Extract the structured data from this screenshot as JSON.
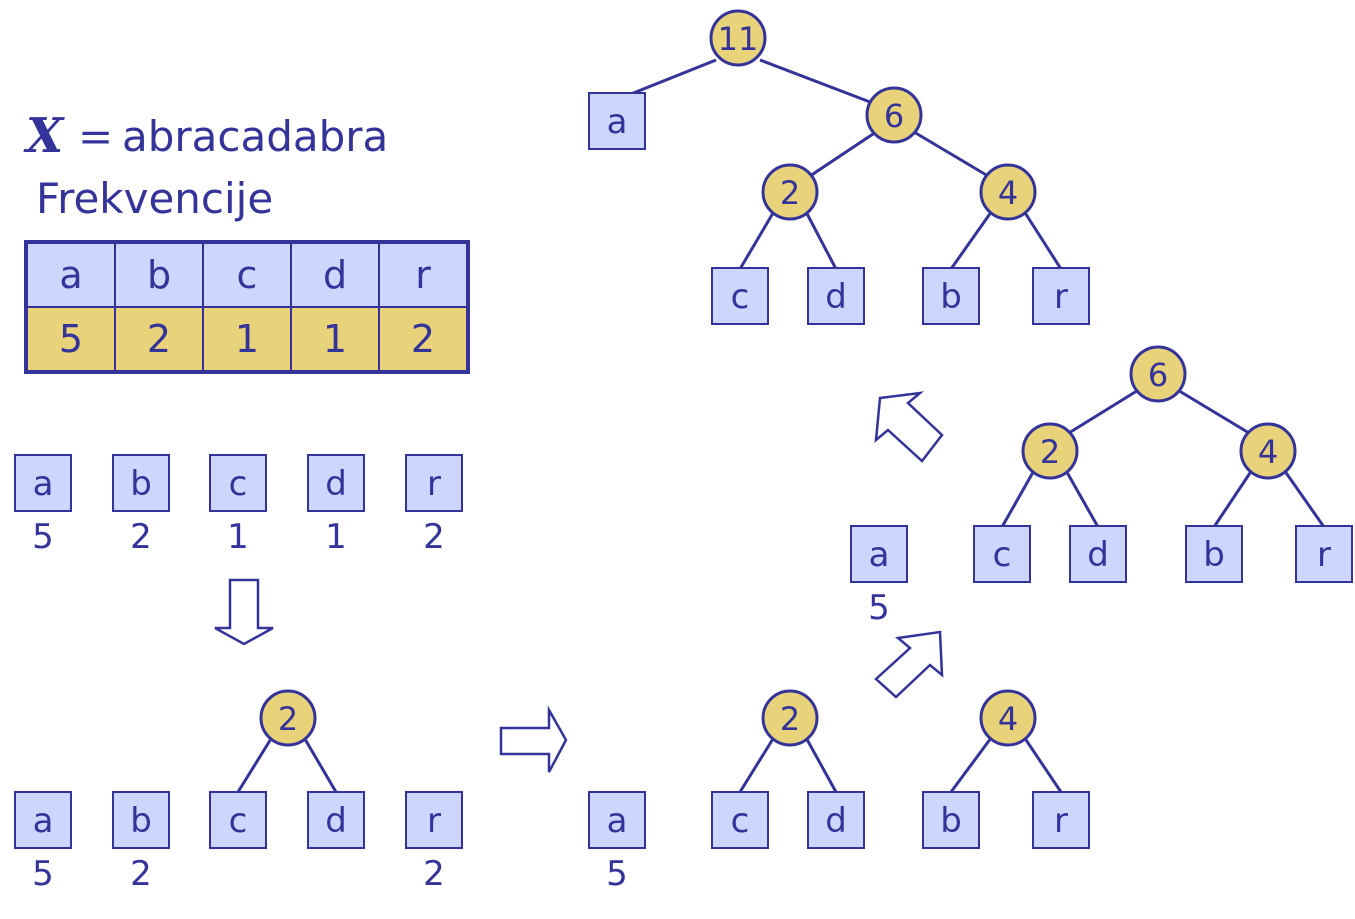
{
  "header": {
    "variable": "X",
    "equals": "=",
    "word": "abracadabra",
    "subtitle": "Frekvencije"
  },
  "frequency_table": {
    "letters": [
      "a",
      "b",
      "c",
      "d",
      "r"
    ],
    "counts": [
      "5",
      "2",
      "1",
      "1",
      "2"
    ]
  },
  "step1": {
    "leaves": [
      {
        "label": "a",
        "count": "5"
      },
      {
        "label": "b",
        "count": "2"
      },
      {
        "label": "c",
        "count": "1"
      },
      {
        "label": "d",
        "count": "1"
      },
      {
        "label": "r",
        "count": "2"
      }
    ]
  },
  "step2": {
    "leaves": [
      {
        "label": "a",
        "count": "5"
      },
      {
        "label": "b",
        "count": "2"
      },
      {
        "label": "c",
        "count": ""
      },
      {
        "label": "d",
        "count": ""
      },
      {
        "label": "r",
        "count": "2"
      }
    ],
    "node_cd": "2"
  },
  "step3": {
    "leaves": [
      {
        "label": "a",
        "count": "5"
      },
      {
        "label": "c",
        "count": ""
      },
      {
        "label": "d",
        "count": ""
      },
      {
        "label": "b",
        "count": ""
      },
      {
        "label": "r",
        "count": ""
      }
    ],
    "node_cd": "2",
    "node_br": "4"
  },
  "step4": {
    "leaves": [
      {
        "label": "a",
        "count": "5"
      },
      {
        "label": "c",
        "count": ""
      },
      {
        "label": "d",
        "count": ""
      },
      {
        "label": "b",
        "count": ""
      },
      {
        "label": "r",
        "count": ""
      }
    ],
    "node_cd": "2",
    "node_br": "4",
    "node_root": "6"
  },
  "step5": {
    "leaves": [
      {
        "label": "a"
      },
      {
        "label": "c"
      },
      {
        "label": "d"
      },
      {
        "label": "b"
      },
      {
        "label": "r"
      }
    ],
    "node_cd": "2",
    "node_br": "4",
    "node_mid": "6",
    "node_root": "11"
  },
  "colors": {
    "ink": "#333399",
    "leaf_fill": "#ccd6ff",
    "node_fill": "#e8d27a"
  }
}
